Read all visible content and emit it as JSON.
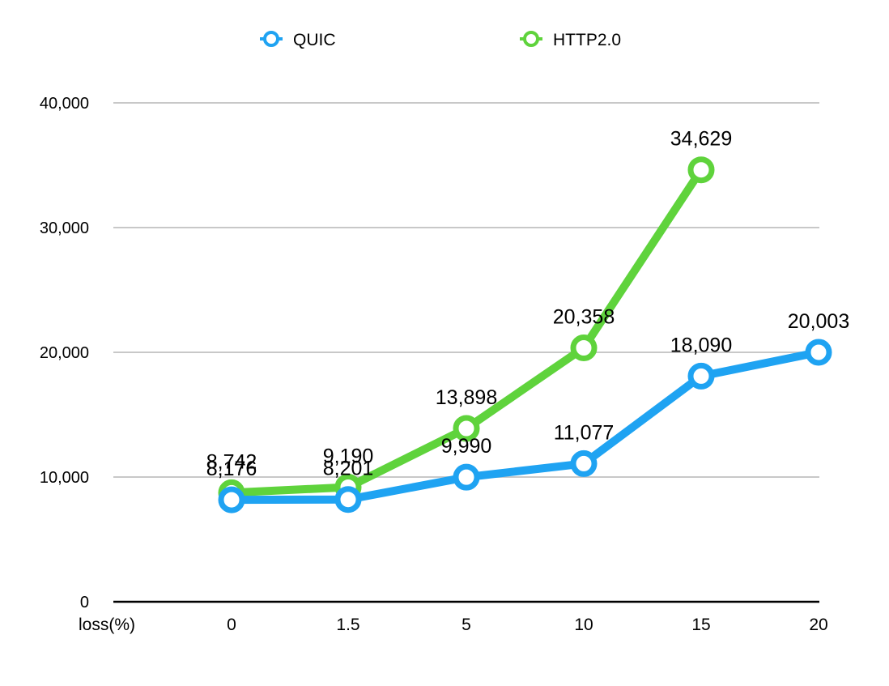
{
  "chart_data": {
    "type": "line",
    "title": "",
    "xlabel": "loss(%)",
    "ylabel": "",
    "categories": [
      "0",
      "1.5",
      "5",
      "10",
      "15",
      "20"
    ],
    "ylim": [
      0,
      40000
    ],
    "yticks": [
      0,
      10000,
      20000,
      30000,
      40000
    ],
    "ytick_labels": [
      "0",
      "10,000",
      "20,000",
      "30,000",
      "40,000"
    ],
    "grid": true,
    "legend_position": "top",
    "series": [
      {
        "name": "QUIC",
        "color": "#1fa3f2",
        "values": [
          8176,
          8201,
          9990,
          11077,
          18090,
          20003
        ],
        "labels": [
          "8,176",
          "8,201",
          "9,990",
          "11,077",
          "18,090",
          "20,003"
        ]
      },
      {
        "name": "HTTP2.0",
        "color": "#5fd33c",
        "values": [
          8742,
          9190,
          13898,
          20358,
          34629,
          null
        ],
        "labels": [
          "8,742",
          "9,190",
          "13,898",
          "20,358",
          "34,629",
          null
        ]
      }
    ]
  }
}
